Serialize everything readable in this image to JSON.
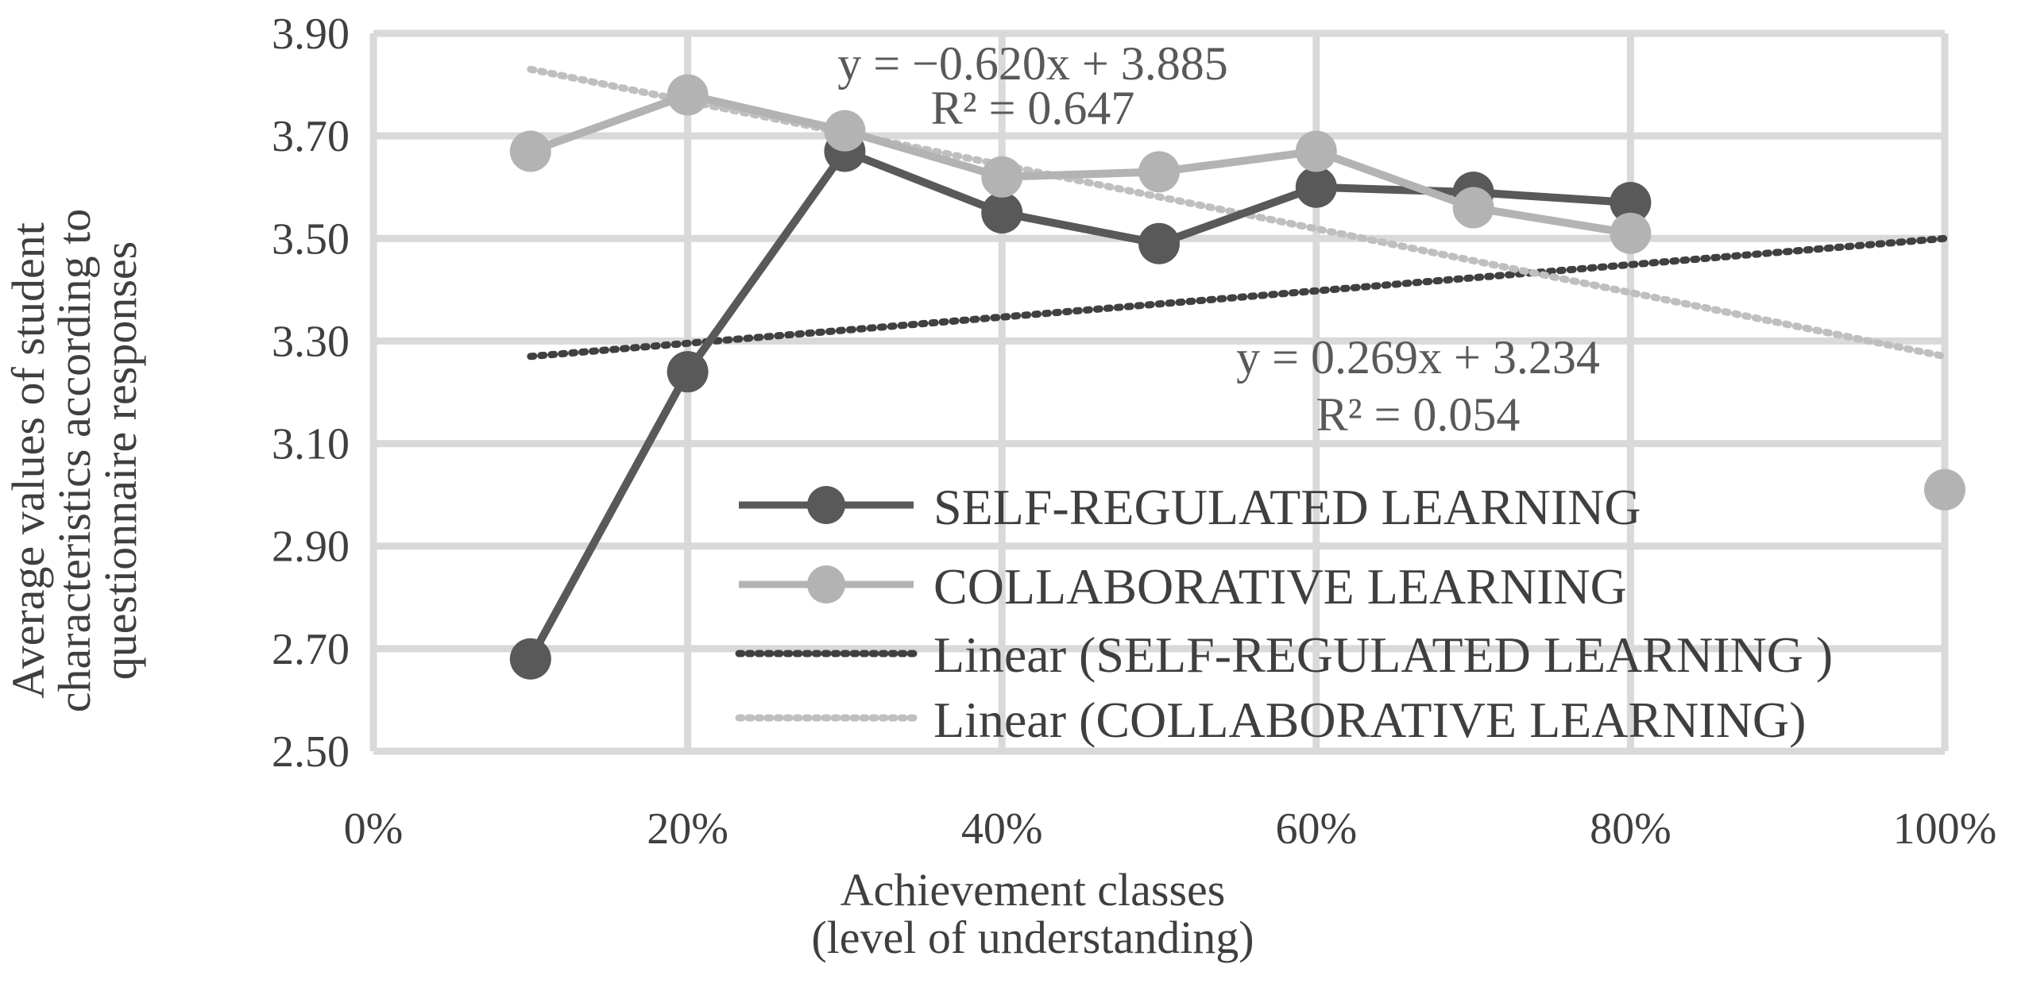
{
  "chart_data": {
    "type": "line",
    "xlabel": [
      "Achievement classes",
      "(level of understanding)"
    ],
    "ylabel": [
      "Average values of student",
      "characteristics according to",
      "questionnaire responses"
    ],
    "xlim": [
      0,
      100
    ],
    "ylim": [
      2.5,
      3.9
    ],
    "x_ticks": [
      0,
      20,
      40,
      60,
      80,
      100
    ],
    "x_tick_labels": [
      "0%",
      "20%",
      "40%",
      "60%",
      "80%",
      "100%"
    ],
    "y_ticks": [
      2.5,
      2.7,
      2.9,
      3.1,
      3.3,
      3.5,
      3.7,
      3.9
    ],
    "y_tick_labels": [
      "2.50",
      "2.70",
      "2.90",
      "3.10",
      "3.30",
      "3.50",
      "3.70",
      "3.90"
    ],
    "grid": true,
    "legend_position": "inside-bottom-right",
    "series": [
      {
        "name": "SELF-REGULATED LEARNING",
        "color": "#595959",
        "x": [
          10,
          20,
          30,
          40,
          50,
          60,
          70,
          80
        ],
        "y": [
          2.68,
          3.24,
          3.67,
          3.55,
          3.49,
          3.6,
          3.59,
          3.57
        ]
      },
      {
        "name": "COLLABORATIVE LEARNING",
        "color": "#b3b3b3",
        "x": [
          10,
          20,
          30,
          40,
          50,
          60,
          70,
          80,
          100
        ],
        "y": [
          3.67,
          3.78,
          3.71,
          3.62,
          3.63,
          3.67,
          3.56,
          3.51,
          3.01
        ],
        "connected_points": 8
      }
    ],
    "trendlines": [
      {
        "name": "Linear (SELF-REGULATED LEARNING )",
        "color": "#404040",
        "x": [
          10,
          100
        ],
        "y": [
          3.27,
          3.5
        ],
        "equation": "y = 0.269x + 3.234",
        "r2": "R² = 0.054"
      },
      {
        "name": "Linear (COLLABORATIVE LEARNING)",
        "color": "#bfbfbf",
        "x": [
          10,
          100
        ],
        "y": [
          3.83,
          3.27
        ],
        "equation": "y = −0.620x + 3.885",
        "r2": "R² = 0.647"
      }
    ]
  }
}
